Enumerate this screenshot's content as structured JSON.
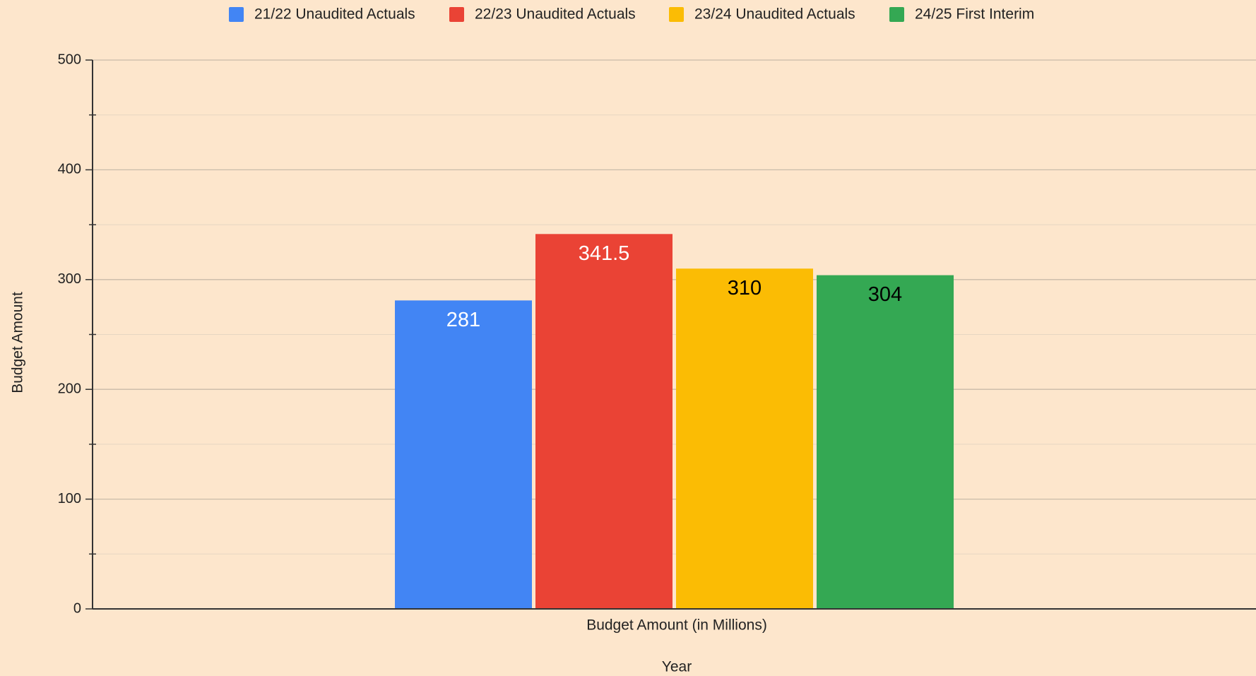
{
  "chart_data": {
    "type": "bar",
    "categories": [
      "Budget Amount (in Millions)"
    ],
    "x_label": "Year",
    "y_label": "Budget Amount",
    "series": [
      {
        "name": "21/22 Unaudited Actuals",
        "color": "#4285f4",
        "label_color": "#ffffff",
        "values": [
          281
        ]
      },
      {
        "name": "22/23 Unaudited Actuals",
        "color": "#ea4335",
        "label_color": "#ffffff",
        "values": [
          341.5
        ]
      },
      {
        "name": "23/24 Unaudited Actuals",
        "color": "#fbbc04",
        "label_color": "#000000",
        "values": [
          310
        ]
      },
      {
        "name": "24/25 First Interim",
        "color": "#34a853",
        "label_color": "#000000",
        "values": [
          304
        ]
      }
    ],
    "ylim": [
      0,
      500
    ],
    "yticks": [
      0,
      100,
      200,
      300,
      400,
      500
    ],
    "minor_yticks": [
      50,
      150,
      250,
      350,
      450
    ],
    "grid": true,
    "legend": "top",
    "background": "#fde6cc"
  }
}
